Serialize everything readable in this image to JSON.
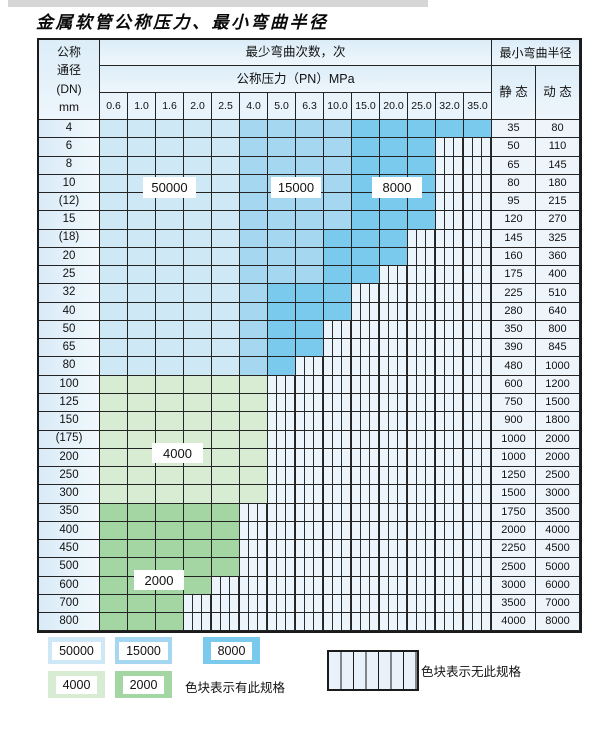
{
  "title": "金属软管公称压力、最小弯曲半径",
  "table": {
    "dn_header_lines": [
      "公称",
      "通径",
      "(DN)",
      "mm"
    ],
    "bend_times_header": "最少弯曲次数，次",
    "min_radius_header": "最小弯曲半径",
    "pressure_header": "公称压力（PN）MPa",
    "static_header": "静 态",
    "dynamic_header": "动 态",
    "pressure_columns": [
      "0.6",
      "1.0",
      "1.6",
      "2.0",
      "2.5",
      "4.0",
      "5.0",
      "6.3",
      "10.0",
      "15.0",
      "20.0",
      "25.0",
      "32.0",
      "35.0"
    ],
    "rows": [
      {
        "dn": "4",
        "cells": [
          50000,
          50000,
          50000,
          50000,
          50000,
          15000,
          15000,
          15000,
          15000,
          8000,
          8000,
          8000,
          8000,
          8000
        ],
        "static": "35",
        "dynamic": "80"
      },
      {
        "dn": "6",
        "cells": [
          50000,
          50000,
          50000,
          50000,
          50000,
          15000,
          15000,
          15000,
          15000,
          8000,
          8000,
          8000,
          null,
          null
        ],
        "static": "50",
        "dynamic": "110"
      },
      {
        "dn": "8",
        "cells": [
          50000,
          50000,
          50000,
          50000,
          50000,
          15000,
          15000,
          15000,
          15000,
          8000,
          8000,
          8000,
          null,
          null
        ],
        "static": "65",
        "dynamic": "145"
      },
      {
        "dn": "10",
        "cells": [
          50000,
          50000,
          50000,
          50000,
          50000,
          15000,
          15000,
          15000,
          15000,
          8000,
          8000,
          8000,
          null,
          null
        ],
        "static": "80",
        "dynamic": "180"
      },
      {
        "dn": "(12)",
        "cells": [
          50000,
          50000,
          50000,
          50000,
          50000,
          15000,
          15000,
          15000,
          15000,
          8000,
          8000,
          8000,
          null,
          null
        ],
        "static": "95",
        "dynamic": "215"
      },
      {
        "dn": "15",
        "cells": [
          50000,
          50000,
          50000,
          50000,
          50000,
          15000,
          15000,
          15000,
          15000,
          8000,
          8000,
          8000,
          null,
          null
        ],
        "static": "120",
        "dynamic": "270"
      },
      {
        "dn": "(18)",
        "cells": [
          50000,
          50000,
          50000,
          50000,
          50000,
          15000,
          15000,
          15000,
          8000,
          8000,
          8000,
          null,
          null,
          null
        ],
        "static": "145",
        "dynamic": "325"
      },
      {
        "dn": "20",
        "cells": [
          50000,
          50000,
          50000,
          50000,
          50000,
          15000,
          15000,
          15000,
          8000,
          8000,
          8000,
          null,
          null,
          null
        ],
        "static": "160",
        "dynamic": "360"
      },
      {
        "dn": "25",
        "cells": [
          50000,
          50000,
          50000,
          50000,
          50000,
          15000,
          15000,
          15000,
          8000,
          8000,
          null,
          null,
          null,
          null
        ],
        "static": "175",
        "dynamic": "400"
      },
      {
        "dn": "32",
        "cells": [
          50000,
          50000,
          50000,
          50000,
          50000,
          15000,
          8000,
          8000,
          8000,
          null,
          null,
          null,
          null,
          null
        ],
        "static": "225",
        "dynamic": "510"
      },
      {
        "dn": "40",
        "cells": [
          50000,
          50000,
          50000,
          50000,
          50000,
          15000,
          8000,
          8000,
          8000,
          null,
          null,
          null,
          null,
          null
        ],
        "static": "280",
        "dynamic": "640"
      },
      {
        "dn": "50",
        "cells": [
          50000,
          50000,
          50000,
          50000,
          50000,
          15000,
          8000,
          8000,
          null,
          null,
          null,
          null,
          null,
          null
        ],
        "static": "350",
        "dynamic": "800"
      },
      {
        "dn": "65",
        "cells": [
          50000,
          50000,
          50000,
          50000,
          50000,
          15000,
          8000,
          8000,
          null,
          null,
          null,
          null,
          null,
          null
        ],
        "static": "390",
        "dynamic": "845"
      },
      {
        "dn": "80",
        "cells": [
          50000,
          50000,
          50000,
          50000,
          50000,
          15000,
          8000,
          null,
          null,
          null,
          null,
          null,
          null,
          null
        ],
        "static": "480",
        "dynamic": "1000"
      },
      {
        "dn": "100",
        "cells": [
          4000,
          4000,
          4000,
          4000,
          4000,
          4000,
          null,
          null,
          null,
          null,
          null,
          null,
          null,
          null
        ],
        "static": "600",
        "dynamic": "1200"
      },
      {
        "dn": "125",
        "cells": [
          4000,
          4000,
          4000,
          4000,
          4000,
          4000,
          null,
          null,
          null,
          null,
          null,
          null,
          null,
          null
        ],
        "static": "750",
        "dynamic": "1500"
      },
      {
        "dn": "150",
        "cells": [
          4000,
          4000,
          4000,
          4000,
          4000,
          4000,
          null,
          null,
          null,
          null,
          null,
          null,
          null,
          null
        ],
        "static": "900",
        "dynamic": "1800"
      },
      {
        "dn": "(175)",
        "cells": [
          4000,
          4000,
          4000,
          4000,
          4000,
          4000,
          null,
          null,
          null,
          null,
          null,
          null,
          null,
          null
        ],
        "static": "1000",
        "dynamic": "2000"
      },
      {
        "dn": "200",
        "cells": [
          4000,
          4000,
          4000,
          4000,
          4000,
          4000,
          null,
          null,
          null,
          null,
          null,
          null,
          null,
          null
        ],
        "static": "1000",
        "dynamic": "2000"
      },
      {
        "dn": "250",
        "cells": [
          4000,
          4000,
          4000,
          4000,
          4000,
          4000,
          null,
          null,
          null,
          null,
          null,
          null,
          null,
          null
        ],
        "static": "1250",
        "dynamic": "2500"
      },
      {
        "dn": "300",
        "cells": [
          4000,
          4000,
          4000,
          4000,
          4000,
          4000,
          null,
          null,
          null,
          null,
          null,
          null,
          null,
          null
        ],
        "static": "1500",
        "dynamic": "3000"
      },
      {
        "dn": "350",
        "cells": [
          2000,
          2000,
          2000,
          2000,
          2000,
          null,
          null,
          null,
          null,
          null,
          null,
          null,
          null,
          null
        ],
        "static": "1750",
        "dynamic": "3500"
      },
      {
        "dn": "400",
        "cells": [
          2000,
          2000,
          2000,
          2000,
          2000,
          null,
          null,
          null,
          null,
          null,
          null,
          null,
          null,
          null
        ],
        "static": "2000",
        "dynamic": "4000"
      },
      {
        "dn": "450",
        "cells": [
          2000,
          2000,
          2000,
          2000,
          2000,
          null,
          null,
          null,
          null,
          null,
          null,
          null,
          null,
          null
        ],
        "static": "2250",
        "dynamic": "4500"
      },
      {
        "dn": "500",
        "cells": [
          2000,
          2000,
          2000,
          2000,
          2000,
          null,
          null,
          null,
          null,
          null,
          null,
          null,
          null,
          null
        ],
        "static": "2500",
        "dynamic": "5000"
      },
      {
        "dn": "600",
        "cells": [
          2000,
          2000,
          2000,
          2000,
          null,
          null,
          null,
          null,
          null,
          null,
          null,
          null,
          null,
          null
        ],
        "static": "3000",
        "dynamic": "6000"
      },
      {
        "dn": "700",
        "cells": [
          2000,
          2000,
          2000,
          null,
          null,
          null,
          null,
          null,
          null,
          null,
          null,
          null,
          null,
          null
        ],
        "static": "3500",
        "dynamic": "7000"
      },
      {
        "dn": "800",
        "cells": [
          2000,
          2000,
          2000,
          null,
          null,
          null,
          null,
          null,
          null,
          null,
          null,
          null,
          null,
          null
        ],
        "static": "4000",
        "dynamic": "8000"
      }
    ]
  },
  "color_map": {
    "50000": "#cfe8f6",
    "15000": "#a6d7f0",
    "8000": "#7acaee",
    "4000": "#d8ecd3",
    "2000": "#a3d6a2"
  },
  "region_labels": [
    "50000",
    "15000",
    "8000",
    "4000",
    "2000"
  ],
  "legend": {
    "chips": [
      {
        "label": "50000",
        "color": "#cfe8f6"
      },
      {
        "label": "15000",
        "color": "#a6d7f0"
      },
      {
        "label": "8000",
        "color": "#7acaee"
      },
      {
        "label": "4000",
        "color": "#d8ecd3"
      },
      {
        "label": "2000",
        "color": "#a3d6a2"
      }
    ],
    "has_spec_note": "色块表示有此规格",
    "no_spec_note": "色块表示无此规格"
  }
}
